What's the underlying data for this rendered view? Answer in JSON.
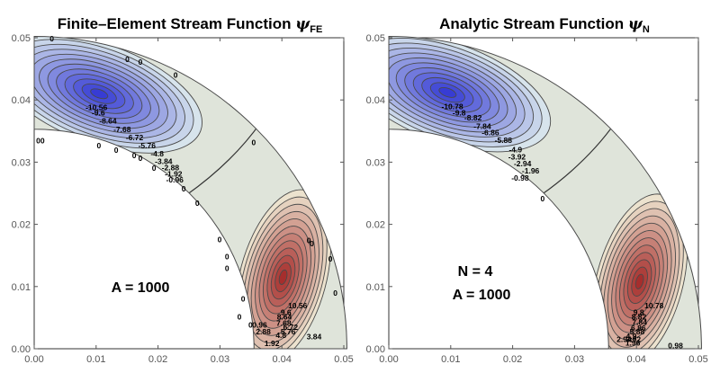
{
  "chart_data": [
    {
      "type": "contour",
      "title": "Finite–Element Stream Function",
      "title_symbol": "ψ",
      "title_subscript": "FE",
      "xlim": [
        0,
        0.05
      ],
      "ylim": [
        0,
        0.05
      ],
      "xticks": [
        "0.00",
        "0.01",
        "0.02",
        "0.03",
        "0.04",
        "0.05"
      ],
      "yticks": [
        "0.00",
        "0.01",
        "0.02",
        "0.03",
        "0.04",
        "0.05"
      ],
      "annotations": [
        "A = 1000"
      ],
      "vortices": [
        {
          "center": [
            0.0105,
            0.041
          ],
          "extremum": -10.56
        },
        {
          "center": [
            0.0402,
            0.0115
          ],
          "extremum": 10.56
        }
      ],
      "contour_labels": [
        {
          "text": "-10.56",
          "x": 0.0083,
          "y": 0.0384
        },
        {
          "text": "-9.6",
          "x": 0.0093,
          "y": 0.0375
        },
        {
          "text": "-8.64",
          "x": 0.0105,
          "y": 0.0362
        },
        {
          "text": "-7.68",
          "x": 0.0128,
          "y": 0.0348
        },
        {
          "text": "-6.72",
          "x": 0.0148,
          "y": 0.0335
        },
        {
          "text": "-5.76",
          "x": 0.0168,
          "y": 0.0322
        },
        {
          "text": "-4.8",
          "x": 0.0188,
          "y": 0.0309
        },
        {
          "text": "-3.84",
          "x": 0.0195,
          "y": 0.0297
        },
        {
          "text": "-2.88",
          "x": 0.0206,
          "y": 0.0287
        },
        {
          "text": "-1.92",
          "x": 0.0211,
          "y": 0.0277
        },
        {
          "text": "-0.96",
          "x": 0.0213,
          "y": 0.0267
        },
        {
          "text": "0",
          "x": 0.0025,
          "y": 0.0494
        },
        {
          "text": "0",
          "x": 0.0147,
          "y": 0.0461
        },
        {
          "text": "0",
          "x": 0.0168,
          "y": 0.0457
        },
        {
          "text": "0",
          "x": 0.0225,
          "y": 0.0436
        },
        {
          "text": "0",
          "x": 0.0351,
          "y": 0.0327
        },
        {
          "text": "0",
          "x": 0.0003,
          "y": 0.033
        },
        {
          "text": "0",
          "x": 0.001,
          "y": 0.033
        },
        {
          "text": "0",
          "x": 0.0101,
          "y": 0.0322
        },
        {
          "text": "0",
          "x": 0.0129,
          "y": 0.0315
        },
        {
          "text": "0",
          "x": 0.0158,
          "y": 0.0306
        },
        {
          "text": "0",
          "x": 0.0168,
          "y": 0.0302
        },
        {
          "text": "0",
          "x": 0.019,
          "y": 0.0286
        },
        {
          "text": "0",
          "x": 0.0238,
          "y": 0.0253
        },
        {
          "text": "0",
          "x": 0.026,
          "y": 0.023
        },
        {
          "text": "0",
          "x": 0.0296,
          "y": 0.0171
        },
        {
          "text": "0",
          "x": 0.0308,
          "y": 0.0144
        },
        {
          "text": "0",
          "x": 0.0308,
          "y": 0.0125
        },
        {
          "text": "0",
          "x": 0.0334,
          "y": 0.0076
        },
        {
          "text": "0",
          "x": 0.0328,
          "y": 0.0047
        },
        {
          "text": "0",
          "x": 0.044,
          "y": 0.017
        },
        {
          "text": "0",
          "x": 0.0445,
          "y": 0.0165
        },
        {
          "text": "0",
          "x": 0.0475,
          "y": 0.014
        },
        {
          "text": "0",
          "x": 0.0483,
          "y": 0.0085
        },
        {
          "text": "10.56",
          "x": 0.041,
          "y": 0.0065
        },
        {
          "text": "9.6",
          "x": 0.0398,
          "y": 0.0054
        },
        {
          "text": "8.64",
          "x": 0.0392,
          "y": 0.0047
        },
        {
          "text": "7.68",
          "x": 0.0391,
          "y": 0.0037
        },
        {
          "text": "6.72",
          "x": 0.0402,
          "y": 0.003
        },
        {
          "text": "5.76",
          "x": 0.0398,
          "y": 0.0023
        },
        {
          "text": "4.8",
          "x": 0.039,
          "y": 0.0017
        },
        {
          "text": "3.84",
          "x": 0.044,
          "y": 0.0015
        },
        {
          "text": "2.88",
          "x": 0.0358,
          "y": 0.0023
        },
        {
          "text": "1.92",
          "x": 0.0372,
          "y": 0.0004
        },
        {
          "text": "0.96",
          "x": 0.0352,
          "y": 0.0034
        },
        {
          "text": "0",
          "x": 0.0346,
          "y": 0.0034
        }
      ]
    },
    {
      "type": "contour",
      "title": "Analytic Stream Function",
      "title_symbol": "ψ",
      "title_subscript": "N",
      "xlim": [
        0,
        0.05
      ],
      "ylim": [
        0,
        0.05
      ],
      "xticks": [
        "0.00",
        "0.01",
        "0.02",
        "0.03",
        "0.04",
        "0.05"
      ],
      "yticks": [
        "0.00",
        "0.01",
        "0.02",
        "0.03",
        "0.04",
        "0.05"
      ],
      "annotations": [
        "N = 4",
        "A = 1000"
      ],
      "vortices": [
        {
          "center": [
            0.0095,
            0.0412
          ],
          "extremum": -10.78
        },
        {
          "center": [
            0.0405,
            0.0108
          ],
          "extremum": 10.78
        }
      ],
      "contour_labels": [
        {
          "text": "-10.78",
          "x": 0.0085,
          "y": 0.0385
        },
        {
          "text": "-9.8",
          "x": 0.0103,
          "y": 0.0375
        },
        {
          "text": "-8.82",
          "x": 0.0122,
          "y": 0.0367
        },
        {
          "text": "-7.84",
          "x": 0.0137,
          "y": 0.0353
        },
        {
          "text": "-6.86",
          "x": 0.015,
          "y": 0.0343
        },
        {
          "text": "-5.88",
          "x": 0.0171,
          "y": 0.0331
        },
        {
          "text": "-4.9",
          "x": 0.0194,
          "y": 0.0316
        },
        {
          "text": "-3.92",
          "x": 0.0193,
          "y": 0.0304
        },
        {
          "text": "-2.94",
          "x": 0.0202,
          "y": 0.0293
        },
        {
          "text": "-1.96",
          "x": 0.0215,
          "y": 0.0282
        },
        {
          "text": "-0.98",
          "x": 0.0198,
          "y": 0.027
        },
        {
          "text": "0",
          "x": 0.0245,
          "y": 0.0237
        },
        {
          "text": "10.78",
          "x": 0.0413,
          "y": 0.0065
        },
        {
          "text": "9.8",
          "x": 0.0395,
          "y": 0.0054
        },
        {
          "text": "8.82",
          "x": 0.0392,
          "y": 0.0047
        },
        {
          "text": "7.84",
          "x": 0.0393,
          "y": 0.0038
        },
        {
          "text": "6.86",
          "x": 0.0391,
          "y": 0.0029
        },
        {
          "text": "5.88",
          "x": 0.0389,
          "y": 0.0023
        },
        {
          "text": "4.9",
          "x": 0.0383,
          "y": 0.0016
        },
        {
          "text": "3.92",
          "x": 0.0383,
          "y": 0.0011
        },
        {
          "text": "2.94",
          "x": 0.0368,
          "y": 0.0011
        },
        {
          "text": "1.96",
          "x": 0.0382,
          "y": 0.0005
        },
        {
          "text": "0.98",
          "x": 0.0451,
          "y": 0.0001
        }
      ]
    }
  ]
}
